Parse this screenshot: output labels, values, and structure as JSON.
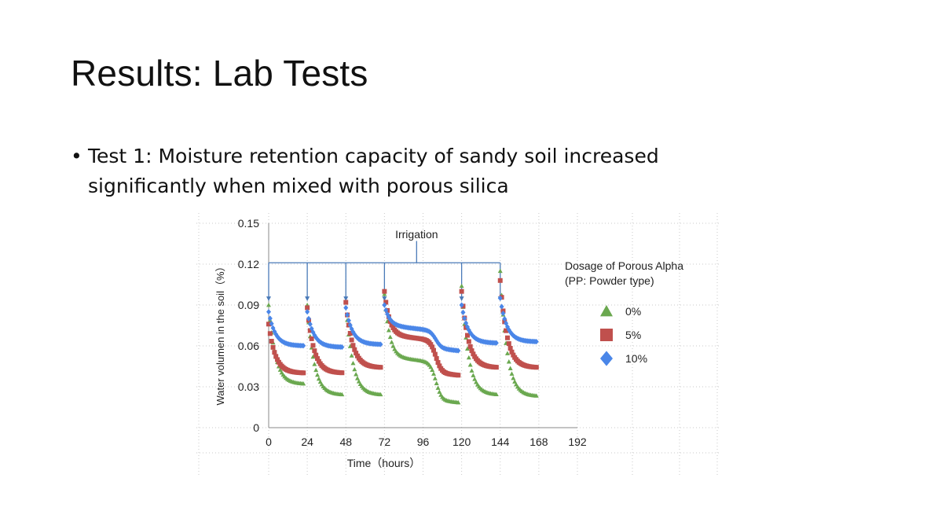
{
  "slide": {
    "title": "Results: Lab Tests",
    "bullet_glyph": "•",
    "bullet": "Test 1: Moisture retention capacity of sandy soil increased significantly when mixed with porous silica"
  },
  "chart_data": {
    "type": "scatter",
    "xlabel": "Time（hours）",
    "ylabel": "Water volumen in the soil（%）",
    "xlim": [
      0,
      192
    ],
    "ylim": [
      0,
      0.15
    ],
    "xticks": [
      0,
      24,
      48,
      72,
      96,
      120,
      144,
      168,
      192
    ],
    "yticks": [
      "0",
      "0.03",
      "0.06",
      "0.09",
      "0.12",
      "0.15"
    ],
    "grid": true,
    "annotation": {
      "text": "Irrigation",
      "irrigation_times": [
        0,
        24,
        48,
        72,
        120,
        144
      ]
    },
    "legend": {
      "title_lines": [
        "Dosage of Porous Alpha",
        "(PP: Powder type)"
      ],
      "position": "right"
    },
    "series": [
      {
        "name": "0%",
        "marker": "triangle",
        "color": "#6aa84f",
        "segments": [
          {
            "start": 0,
            "end": 22,
            "peak": 0.09,
            "low": 0.032
          },
          {
            "start": 24,
            "end": 46,
            "peak": 0.09,
            "low": 0.024
          },
          {
            "start": 48,
            "end": 70,
            "peak": 0.092,
            "low": 0.024
          },
          {
            "start": 72,
            "end": 118,
            "peak": 0.098,
            "low": 0.024,
            "plateau": 0.052
          },
          {
            "start": 120,
            "end": 142,
            "peak": 0.104,
            "low": 0.024
          },
          {
            "start": 144,
            "end": 167,
            "peak": 0.115,
            "low": 0.023
          }
        ]
      },
      {
        "name": "5%",
        "marker": "square",
        "color": "#c0504d",
        "segments": [
          {
            "start": 0,
            "end": 22,
            "peak": 0.076,
            "low": 0.04
          },
          {
            "start": 24,
            "end": 46,
            "peak": 0.088,
            "low": 0.04
          },
          {
            "start": 48,
            "end": 70,
            "peak": 0.092,
            "low": 0.044
          },
          {
            "start": 72,
            "end": 118,
            "peak": 0.1,
            "low": 0.044,
            "plateau": 0.068
          },
          {
            "start": 120,
            "end": 142,
            "peak": 0.1,
            "low": 0.044
          },
          {
            "start": 144,
            "end": 167,
            "peak": 0.108,
            "low": 0.044
          }
        ]
      },
      {
        "name": "10%",
        "marker": "diamond",
        "color": "#4a86e8",
        "segments": [
          {
            "start": 0,
            "end": 22,
            "peak": 0.085,
            "low": 0.06
          },
          {
            "start": 24,
            "end": 46,
            "peak": 0.085,
            "low": 0.059
          },
          {
            "start": 48,
            "end": 70,
            "peak": 0.088,
            "low": 0.061
          },
          {
            "start": 72,
            "end": 118,
            "peak": 0.09,
            "low": 0.062,
            "plateau": 0.075
          },
          {
            "start": 120,
            "end": 142,
            "peak": 0.09,
            "low": 0.062
          },
          {
            "start": 144,
            "end": 167,
            "peak": 0.095,
            "low": 0.063
          }
        ]
      }
    ]
  }
}
